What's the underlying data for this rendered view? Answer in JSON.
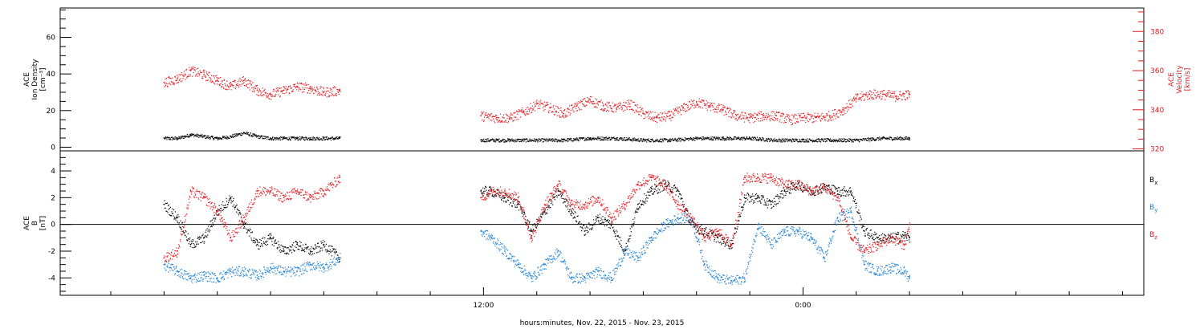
{
  "x_title": "hours:minutes, Nov. 22, 2015 - Nov. 23, 2015",
  "chart_data": [
    {
      "type": "scatter",
      "panel": "top",
      "ylabel_lines": [
        "ACE",
        "Ion Density",
        "[cm⁻³]"
      ],
      "ylim": [
        -2,
        76
      ],
      "yticks": [
        0,
        20,
        40,
        60
      ],
      "y2label_lines": [
        "ACE",
        "Velocity",
        "[km/s]"
      ],
      "y2lim": [
        319,
        392
      ],
      "y2ticks": [
        320,
        340,
        360,
        380
      ],
      "series": [
        {
          "name_hidden": true,
          "axis": "left",
          "color": "#000000",
          "x": [
            0.0,
            0.5,
            1.0,
            1.5,
            2.0,
            2.5,
            3.0,
            3.5,
            4.0,
            4.5,
            5.0,
            5.5,
            6.0,
            6.6,
            11.9,
            12.5,
            13.0,
            14.0,
            15.0,
            16.0,
            17.0,
            18.0,
            19.0,
            20.0,
            21.0,
            22.0,
            23.0,
            24.0,
            25.0,
            26.0,
            27.0,
            28.0
          ],
          "y": [
            5,
            5,
            7,
            6,
            5,
            6,
            8,
            6,
            5,
            5,
            5,
            5,
            5,
            5,
            4,
            4,
            4,
            4,
            4,
            5,
            5,
            4,
            4,
            5,
            5,
            5,
            4,
            4,
            4,
            4,
            5,
            5
          ]
        },
        {
          "name_hidden": true,
          "axis": "right",
          "color": "#e8171c",
          "x": [
            0.0,
            0.5,
            1.0,
            1.5,
            2.0,
            2.5,
            3.0,
            3.5,
            4.0,
            4.5,
            5.0,
            5.5,
            6.0,
            6.6,
            11.9,
            12.5,
            13.0,
            13.5,
            14.0,
            14.5,
            15.0,
            15.5,
            16.0,
            16.5,
            17.0,
            17.5,
            18.0,
            18.5,
            19.0,
            19.5,
            20.0,
            20.5,
            21.0,
            21.5,
            22.0,
            22.5,
            23.0,
            23.5,
            24.0,
            24.5,
            25.0,
            25.5,
            26.0,
            26.5,
            27.0,
            27.5,
            28.0
          ],
          "y": [
            354,
            356,
            360,
            358,
            355,
            352,
            355,
            350,
            348,
            350,
            352,
            351,
            349,
            350,
            337,
            336,
            336,
            339,
            343,
            341,
            338,
            342,
            345,
            342,
            341,
            343,
            338,
            336,
            337,
            341,
            344,
            342,
            340,
            337,
            336,
            337,
            337,
            335,
            336,
            336,
            337,
            340,
            346,
            348,
            348,
            347,
            348
          ]
        }
      ]
    },
    {
      "type": "scatter",
      "panel": "bottom",
      "ylabel_lines": [
        "ACE",
        "B",
        "[nT]"
      ],
      "ylim": [
        -5.3,
        5.5
      ],
      "yticks": [
        -4,
        -2,
        0,
        2,
        4
      ],
      "zero_line": true,
      "series": [
        {
          "name": "Bx",
          "color": "#000000",
          "x": [
            0.0,
            0.5,
            1.0,
            1.5,
            2.0,
            2.5,
            3.0,
            3.5,
            4.0,
            4.5,
            5.0,
            5.5,
            6.0,
            6.6,
            11.9,
            12.3,
            12.8,
            13.3,
            13.8,
            14.3,
            14.8,
            15.3,
            15.8,
            16.3,
            16.8,
            17.3,
            17.8,
            18.3,
            18.8,
            19.3,
            19.8,
            20.3,
            20.8,
            21.3,
            21.8,
            22.3,
            22.8,
            23.3,
            23.8,
            24.3,
            24.8,
            25.3,
            25.8,
            26.3,
            26.8,
            27.3,
            27.8,
            28.0
          ],
          "y": [
            1.5,
            0.5,
            -1.5,
            -1.0,
            1.0,
            2.0,
            0.0,
            -1.5,
            -1.0,
            -2.0,
            -1.5,
            -2.0,
            -1.5,
            -2.5,
            2.5,
            2.5,
            2.0,
            1.5,
            -0.5,
            1.0,
            2.5,
            1.0,
            -0.5,
            0.5,
            0.0,
            -2.0,
            1.5,
            2.5,
            3.0,
            2.5,
            0.0,
            -0.5,
            -1.0,
            -1.5,
            2.0,
            2.0,
            1.5,
            2.5,
            3.0,
            2.5,
            2.8,
            2.5,
            2.5,
            -0.5,
            -1.0,
            -1.0,
            -0.8,
            -1.0
          ]
        },
        {
          "name": "By",
          "color": "#1a7fd4",
          "x": [
            0.0,
            0.5,
            1.0,
            1.5,
            2.0,
            2.5,
            3.0,
            3.5,
            4.0,
            4.5,
            5.0,
            5.5,
            6.0,
            6.6,
            11.9,
            12.3,
            12.8,
            13.3,
            13.8,
            14.3,
            14.8,
            15.3,
            15.8,
            16.3,
            16.8,
            17.3,
            17.8,
            18.3,
            18.8,
            19.3,
            19.8,
            20.3,
            20.8,
            21.3,
            21.8,
            22.3,
            22.8,
            23.3,
            23.8,
            24.3,
            24.8,
            25.3,
            25.8,
            26.3,
            26.8,
            27.3,
            27.8,
            28.0
          ],
          "y": [
            -3.0,
            -3.5,
            -4.0,
            -3.8,
            -4.0,
            -3.5,
            -3.5,
            -3.8,
            -3.2,
            -3.5,
            -3.5,
            -3.0,
            -3.2,
            -2.5,
            -0.5,
            -1.0,
            -2.0,
            -3.0,
            -4.0,
            -3.0,
            -2.0,
            -4.0,
            -4.0,
            -3.5,
            -4.0,
            -2.0,
            -2.5,
            -1.0,
            0.0,
            0.5,
            0.5,
            -3.0,
            -4.0,
            -4.2,
            -4.0,
            0.0,
            -1.5,
            -0.5,
            -0.5,
            -1.0,
            -2.5,
            0.5,
            1.0,
            -3.0,
            -3.5,
            -3.2,
            -3.5,
            -4.0
          ]
        },
        {
          "name": "Bz",
          "color": "#e8171c",
          "x": [
            0.0,
            0.5,
            1.0,
            1.5,
            2.0,
            2.5,
            3.0,
            3.5,
            4.0,
            4.5,
            5.0,
            5.5,
            6.0,
            6.6,
            11.9,
            12.3,
            12.8,
            13.3,
            13.8,
            14.3,
            14.8,
            15.3,
            15.8,
            16.3,
            16.8,
            17.3,
            17.8,
            18.3,
            18.8,
            19.3,
            19.8,
            20.3,
            20.8,
            21.3,
            21.8,
            22.3,
            22.8,
            23.3,
            23.8,
            24.3,
            24.8,
            25.3,
            25.8,
            26.3,
            26.8,
            27.3,
            27.8,
            28.0
          ],
          "y": [
            -2.5,
            -2.0,
            2.5,
            2.0,
            1.0,
            -1.0,
            0.5,
            2.5,
            2.5,
            2.0,
            2.5,
            2.0,
            2.5,
            3.5,
            2.0,
            2.5,
            2.5,
            2.0,
            -1.0,
            1.5,
            3.0,
            1.5,
            1.5,
            2.0,
            0.5,
            1.5,
            3.0,
            3.5,
            3.0,
            1.5,
            0.5,
            -1.0,
            -0.5,
            -1.5,
            3.5,
            3.5,
            3.5,
            3.0,
            3.0,
            2.5,
            2.8,
            2.0,
            -1.0,
            -2.0,
            -1.5,
            -1.0,
            -1.5,
            0.0
          ]
        }
      ]
    }
  ],
  "x_axis": {
    "xlim": [
      -3.9,
      36.8
    ],
    "ticks": [
      {
        "x": 12,
        "label": "12:00"
      },
      {
        "x": 24,
        "label": "0:00"
      }
    ],
    "minor_step": 2
  },
  "legend": [
    {
      "base": "B",
      "sub": "x",
      "color": "#000000"
    },
    {
      "base": "B",
      "sub": "y",
      "color": "#1a7fd4"
    },
    {
      "base": "B",
      "sub": "z",
      "color": "#e8171c"
    }
  ]
}
